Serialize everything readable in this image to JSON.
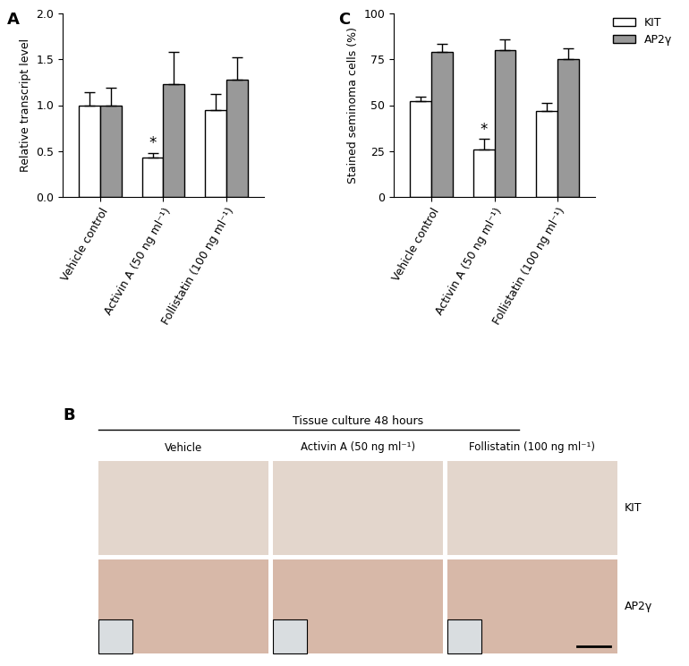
{
  "chart_data": [
    {
      "type": "bar",
      "panel": "A",
      "categories": [
        "Vehicle control",
        "Activin A (50 ng ml⁻¹)",
        "Follistatin (100 ng ml⁻¹)"
      ],
      "y_label": "Relative transcript level",
      "ylim": [
        0.0,
        2.0
      ],
      "yticks": [
        0.0,
        0.5,
        1.0,
        1.5,
        2.0
      ],
      "series": [
        {
          "name": "KIT",
          "color": "#ffffff",
          "values": [
            1.0,
            0.43,
            0.95
          ],
          "errors": [
            0.14,
            0.05,
            0.17
          ]
        },
        {
          "name": "AP2γ",
          "color": "#999999",
          "values": [
            1.0,
            1.23,
            1.28
          ],
          "errors": [
            0.19,
            0.35,
            0.24
          ]
        }
      ],
      "annotations": [
        {
          "text": "*",
          "category": "Activin A (50 ng ml⁻¹)",
          "series": "KIT"
        }
      ]
    },
    {
      "type": "bar",
      "panel": "C",
      "categories": [
        "Vehicle control",
        "Activin A (50 ng ml⁻¹)",
        "Follistatin (100 ng ml⁻¹)"
      ],
      "y_label": "Stained seminoma cells (%)",
      "ylim": [
        0,
        100
      ],
      "yticks": [
        0,
        25,
        50,
        75,
        100
      ],
      "legend": "upper right",
      "series": [
        {
          "name": "KIT",
          "color": "#ffffff",
          "values": [
            52,
            26,
            47
          ],
          "errors": [
            2.5,
            5.5,
            4
          ]
        },
        {
          "name": "AP2γ",
          "color": "#999999",
          "values": [
            79,
            80,
            75
          ],
          "errors": [
            4.5,
            6,
            6
          ]
        }
      ],
      "annotations": [
        {
          "text": "*",
          "category": "Activin A (50 ng ml⁻¹)",
          "series": "KIT"
        }
      ]
    }
  ],
  "image_panel": {
    "panel": "B",
    "title": "Tissue culture 48 hours",
    "columns": [
      "Vehicle",
      "Activin A (50 ng ml⁻¹)",
      "Follistatin (100 ng ml⁻¹)"
    ],
    "rows": [
      "KIT",
      "AP2γ"
    ]
  }
}
